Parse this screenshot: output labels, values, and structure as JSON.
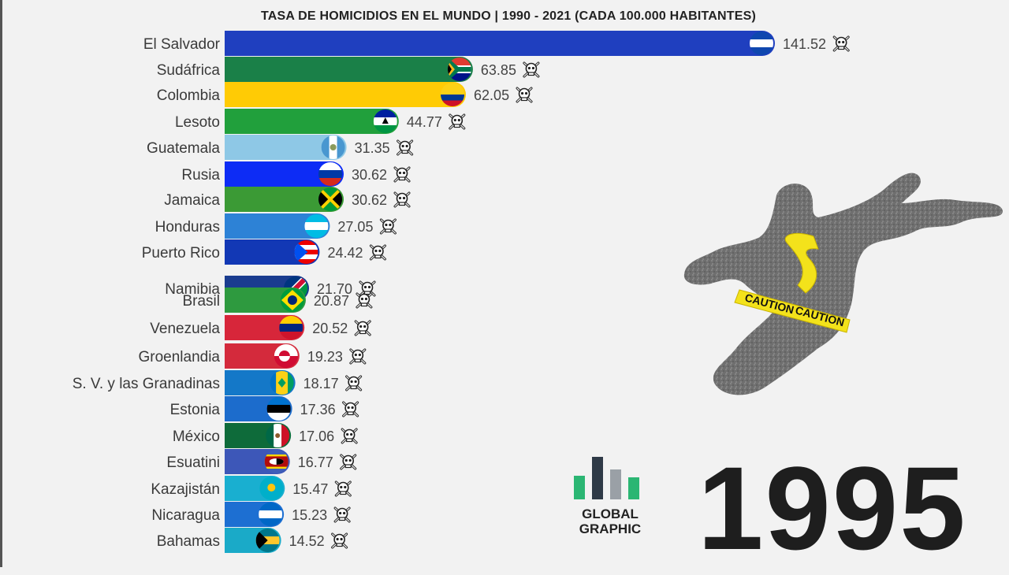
{
  "chart_data": {
    "type": "bar",
    "orientation": "horizontal",
    "title": "TASA DE HOMICIDIOS EN EL MUNDO | 1990 - 2021 (CADA 100.000 HABITANTES)",
    "year": "1995",
    "xlabel": "",
    "ylabel": "",
    "xlim": [
      0,
      141.52
    ],
    "grid": false,
    "legend": "none",
    "categories": [
      "El Salvador",
      "Sudáfrica",
      "Colombia",
      "Lesoto",
      "Guatemala",
      "Rusia",
      "Jamaica",
      "Honduras",
      "Puerto Rico",
      "Namibia",
      "Brasil",
      "Venezuela",
      "Groenlandia",
      "S. V. y las Granadinas",
      "Estonia",
      "México",
      "Esuatini",
      "Kazajistán",
      "Nicaragua",
      "Bahamas"
    ],
    "values": [
      141.52,
      63.85,
      62.05,
      44.77,
      31.35,
      30.62,
      30.62,
      27.05,
      24.42,
      21.7,
      20.87,
      20.52,
      19.23,
      18.17,
      17.36,
      17.06,
      16.77,
      15.47,
      15.23,
      14.52
    ],
    "value_labels": [
      "141.52",
      "63.85",
      "62.05",
      "44.77",
      "31.35",
      "30.62",
      "30.62",
      "27.05",
      "24.42",
      "21.70",
      "20.87",
      "20.52",
      "19.23",
      "18.17",
      "17.36",
      "17.06",
      "16.77",
      "15.47",
      "15.23",
      "14.52"
    ],
    "colors": [
      "#1f3fbf",
      "#1a8048",
      "#ffcb05",
      "#21a03c",
      "#8ec8e6",
      "#0d2cf5",
      "#3b9a35",
      "#2d82d6",
      "#1238b5",
      "#1a3c8f",
      "#2e9a3f",
      "#d7263a",
      "#d42a3c",
      "#1478c8",
      "#1c6ccc",
      "#0e6b3a",
      "#3d57b8",
      "#19afd0",
      "#1d6fd2",
      "#1aaac8"
    ],
    "flags": [
      "flag-el-salvador",
      "flag-south-africa",
      "flag-colombia",
      "flag-lesotho",
      "flag-guatemala",
      "flag-russia",
      "flag-jamaica",
      "flag-honduras",
      "flag-puerto-rico",
      "flag-namibia",
      "flag-brazil",
      "flag-venezuela",
      "flag-greenland",
      "flag-saint-vincent",
      "flag-estonia",
      "flag-mexico",
      "flag-eswatini",
      "flag-kazakhstan",
      "flag-nicaragua",
      "flag-bahamas"
    ],
    "value_icon": "skull-crossbones-icon"
  },
  "brand": {
    "line1": "GLOBAL",
    "line2": "GRAPHIC",
    "bar_colors": [
      "#2bb673",
      "#2f3a47",
      "#9aa0a6",
      "#2bb673"
    ]
  },
  "illustration": {
    "icon": "body-outline-with-caution-tape",
    "tape_text": "CAUTION"
  }
}
